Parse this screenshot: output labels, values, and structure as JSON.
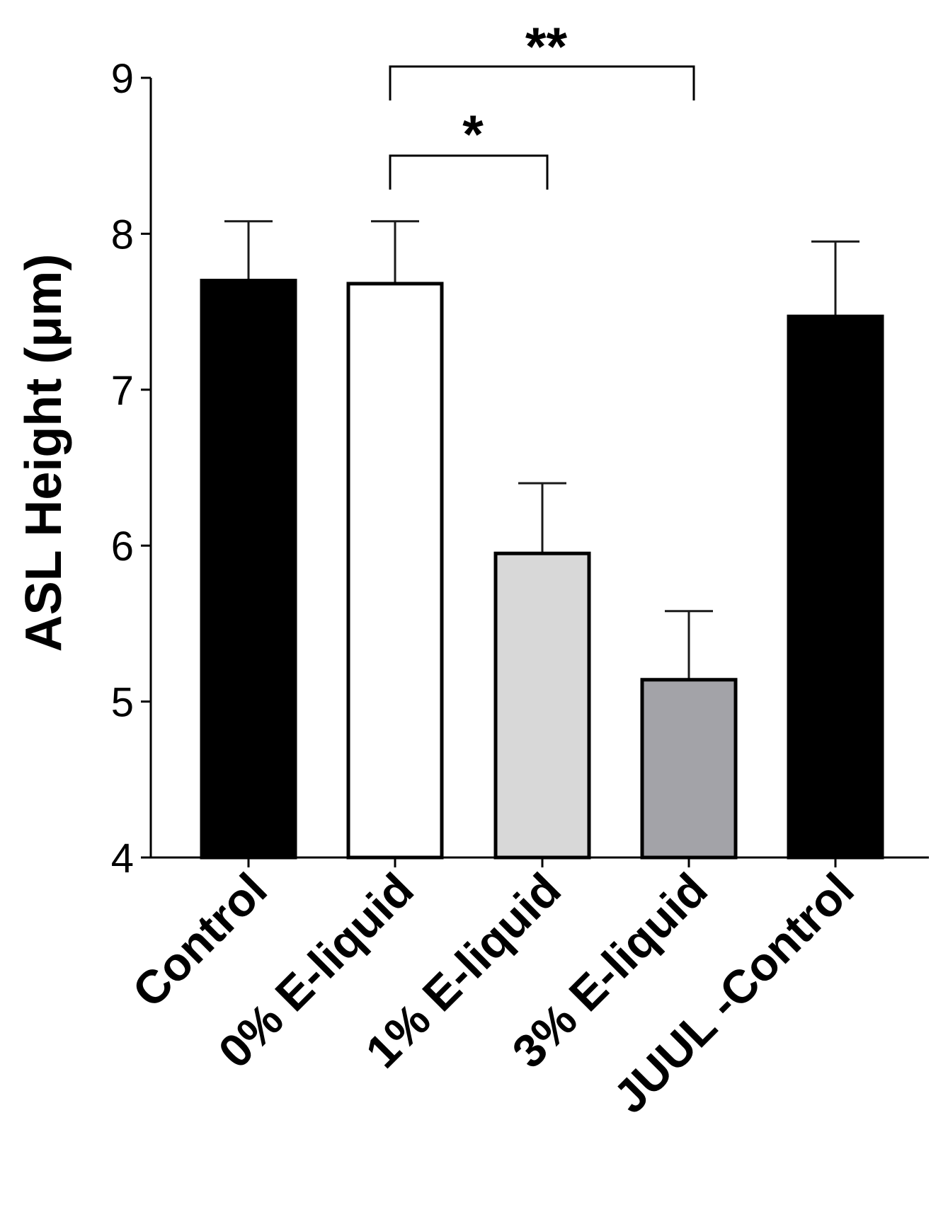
{
  "chart_data": {
    "type": "bar",
    "title": "",
    "xlabel": "",
    "ylabel": "ASL Height (μm)",
    "ylim": [
      4,
      9
    ],
    "yticks": [
      4,
      5,
      6,
      7,
      8,
      9
    ],
    "grid": false,
    "categories": [
      "Control",
      "0% E-liquid",
      "1% E-liquid",
      "3% E-liquid",
      "JUUL -Control"
    ],
    "values": [
      7.7,
      7.68,
      5.95,
      5.14,
      7.47
    ],
    "errors": [
      0.38,
      0.4,
      0.45,
      0.44,
      0.48
    ],
    "colors": [
      "#000000",
      "#ffffff",
      "#d8d8d8",
      "#a3a3a8",
      "#000000"
    ],
    "significance": [
      {
        "from": 1,
        "to": 2,
        "label": "*"
      },
      {
        "from": 1,
        "to": 3,
        "label": "**"
      }
    ]
  }
}
